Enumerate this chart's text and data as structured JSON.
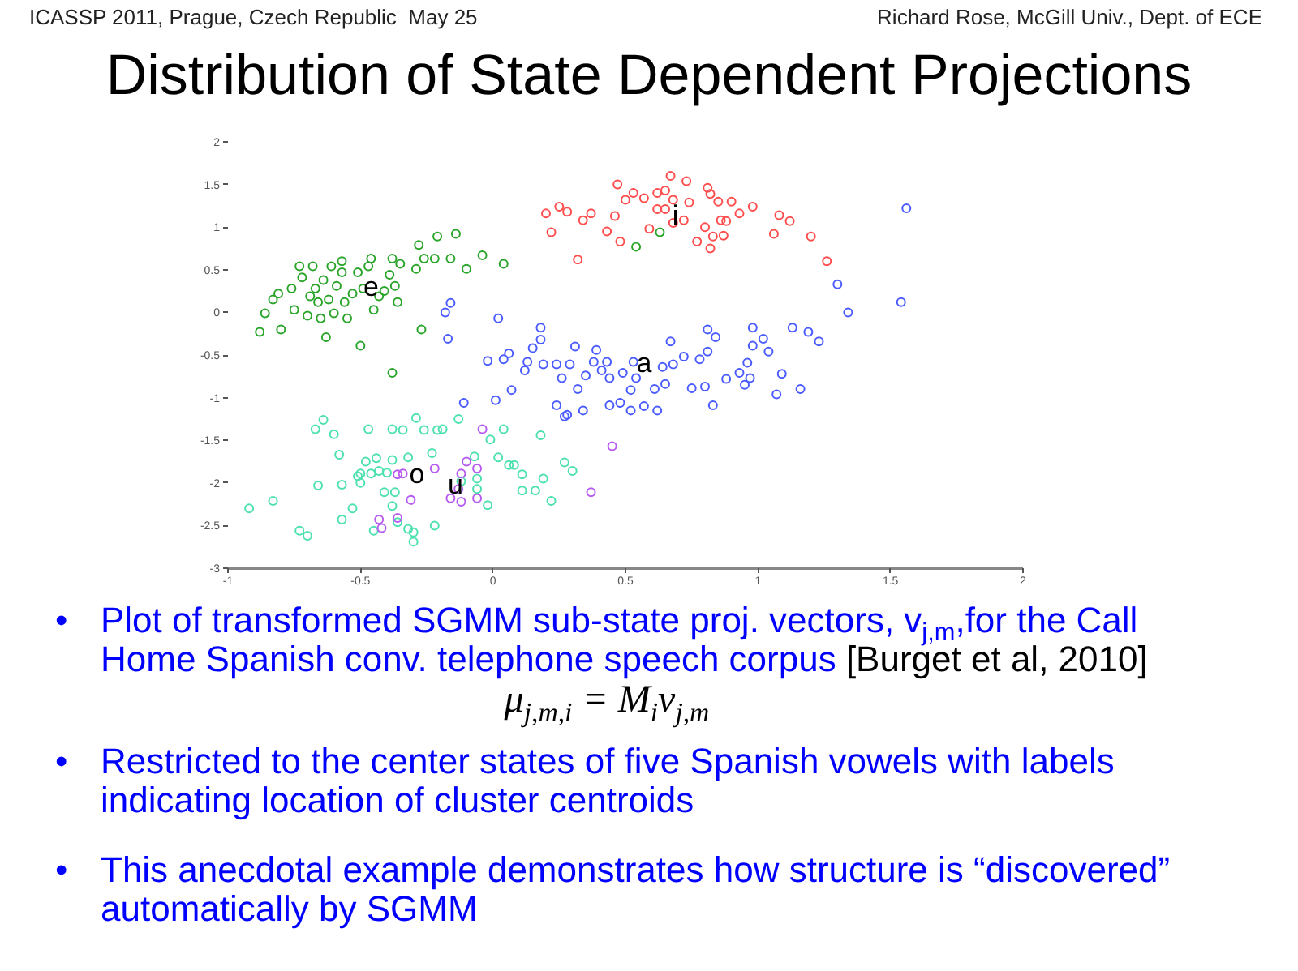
{
  "chart_data": {
    "type": "scatter",
    "title": "Distribution of State Dependent Projections",
    "xlim": [
      -1,
      2
    ],
    "xticks": [
      -1,
      -0.5,
      0,
      0.5,
      1,
      1.5,
      2
    ],
    "ylim": [
      -3,
      2
    ],
    "yticks": [
      -3,
      -2.5,
      -2,
      -1.5,
      -1,
      -0.5,
      0,
      0.5,
      1,
      1.5,
      2
    ],
    "grid": false,
    "marker": "circle",
    "series": [
      {
        "name": "i",
        "color": "#ff4d4d",
        "x": [
          0.2,
          0.22,
          0.25,
          0.28,
          0.32,
          0.34,
          0.37,
          0.43,
          0.46,
          0.47,
          0.48,
          0.5,
          0.53,
          0.57,
          0.59,
          0.62,
          0.62,
          0.65,
          0.65,
          0.67,
          0.68,
          0.68,
          0.72,
          0.73,
          0.74,
          0.77,
          0.8,
          0.81,
          0.82,
          0.82,
          0.83,
          0.85,
          0.86,
          0.87,
          0.88,
          0.9,
          0.93,
          0.98,
          1.06,
          1.08,
          1.12,
          1.2,
          1.26
        ],
        "values": [
          1.16,
          0.94,
          1.24,
          1.18,
          0.62,
          1.08,
          1.16,
          0.95,
          1.13,
          1.5,
          0.83,
          1.32,
          1.4,
          1.34,
          0.98,
          1.4,
          1.21,
          1.43,
          1.21,
          1.6,
          1.32,
          1.05,
          1.08,
          1.54,
          1.29,
          0.83,
          1.0,
          1.46,
          1.39,
          0.75,
          0.89,
          1.3,
          1.08,
          0.9,
          1.07,
          1.3,
          1.16,
          1.24,
          0.92,
          1.14,
          1.07,
          0.89,
          0.6
        ]
      },
      {
        "name": "e",
        "color": "#2aa52a",
        "x": [
          -0.88,
          -0.86,
          -0.83,
          -0.81,
          -0.8,
          -0.76,
          -0.75,
          -0.73,
          -0.72,
          -0.7,
          -0.69,
          -0.68,
          -0.67,
          -0.66,
          -0.65,
          -0.64,
          -0.63,
          -0.62,
          -0.61,
          -0.6,
          -0.59,
          -0.57,
          -0.57,
          -0.56,
          -0.55,
          -0.53,
          -0.51,
          -0.5,
          -0.49,
          -0.47,
          -0.46,
          -0.45,
          -0.43,
          -0.41,
          -0.39,
          -0.38,
          -0.37,
          -0.36,
          -0.35,
          -0.29,
          -0.28,
          -0.27,
          -0.26,
          -0.22,
          -0.21,
          -0.16,
          -0.14,
          -0.1,
          -0.04,
          0.04,
          0.54,
          0.63,
          -0.38
        ],
        "values": [
          -0.23,
          -0.01,
          0.15,
          0.22,
          -0.2,
          0.28,
          0.03,
          0.54,
          0.41,
          -0.04,
          0.19,
          0.54,
          0.28,
          0.12,
          -0.07,
          0.38,
          -0.29,
          0.15,
          0.54,
          -0.01,
          0.31,
          0.6,
          0.47,
          0.12,
          -0.07,
          0.22,
          0.47,
          -0.39,
          0.28,
          0.54,
          0.63,
          0.03,
          0.19,
          0.25,
          0.44,
          0.63,
          0.31,
          0.12,
          0.57,
          0.51,
          0.79,
          -0.2,
          0.63,
          0.63,
          0.89,
          0.63,
          0.92,
          0.51,
          0.67,
          0.57,
          0.77,
          0.94,
          -0.71
        ]
      },
      {
        "name": "a",
        "color": "#4a5cff",
        "x": [
          1.56,
          1.3,
          1.54,
          1.34,
          1.23,
          1.19,
          1.13,
          1.02,
          0.98,
          0.98,
          1.04,
          1.09,
          1.16,
          1.07,
          0.96,
          0.93,
          0.97,
          0.88,
          0.95,
          0.81,
          0.84,
          0.81,
          0.78,
          0.72,
          0.8,
          0.83,
          0.75,
          0.67,
          0.68,
          0.64,
          0.65,
          0.61,
          0.62,
          0.53,
          0.54,
          0.52,
          0.49,
          0.48,
          0.44,
          0.43,
          0.41,
          0.39,
          0.38,
          0.35,
          0.32,
          0.31,
          0.29,
          0.24,
          0.24,
          0.26,
          0.19,
          0.18,
          0.18,
          0.15,
          0.13,
          0.12,
          0.07,
          0.06,
          0.04,
          0.02,
          0.01,
          -0.02,
          0.44,
          0.57,
          0.52,
          0.34,
          0.28,
          -0.16,
          -0.18,
          -0.17,
          -0.11,
          0.27
        ],
        "values": [
          1.22,
          0.33,
          0.12,
          0.0,
          -0.34,
          -0.23,
          -0.18,
          -0.31,
          -0.18,
          -0.39,
          -0.46,
          -0.72,
          -0.9,
          -0.96,
          -0.59,
          -0.71,
          -0.77,
          -0.78,
          -0.85,
          -0.2,
          -0.29,
          -0.46,
          -0.55,
          -0.52,
          -0.87,
          -1.09,
          -0.89,
          -0.34,
          -0.61,
          -0.64,
          -0.84,
          -0.9,
          -1.15,
          -0.58,
          -0.77,
          -0.91,
          -0.71,
          -1.06,
          -0.77,
          -0.58,
          -0.68,
          -0.44,
          -0.58,
          -0.74,
          -0.9,
          -0.4,
          -0.61,
          -0.61,
          -1.09,
          -0.77,
          -0.61,
          -0.32,
          -0.18,
          -0.42,
          -0.58,
          -0.68,
          -0.91,
          -0.48,
          -0.55,
          -0.07,
          -1.03,
          -0.57,
          -1.09,
          -1.1,
          -1.15,
          -1.15,
          -1.2,
          0.11,
          0.0,
          -0.31,
          -1.06,
          -1.22
        ]
      },
      {
        "name": "o",
        "color": "#4de0b0",
        "x": [
          -0.92,
          -0.83,
          -0.73,
          -0.7,
          -0.67,
          -0.64,
          -0.6,
          -0.58,
          -0.66,
          -0.57,
          -0.57,
          -0.53,
          -0.51,
          -0.5,
          -0.5,
          -0.48,
          -0.47,
          -0.46,
          -0.45,
          -0.44,
          -0.43,
          -0.41,
          -0.4,
          -0.38,
          -0.38,
          -0.38,
          -0.37,
          -0.36,
          -0.34,
          -0.32,
          -0.32,
          -0.3,
          -0.3,
          -0.29,
          -0.26,
          -0.23,
          -0.22,
          -0.21,
          -0.19,
          -0.13,
          -0.12,
          -0.07,
          -0.06,
          -0.06,
          -0.02,
          -0.01,
          0.02,
          0.04,
          0.06,
          0.08,
          0.11,
          0.11,
          0.16,
          0.19,
          0.22,
          0.27,
          0.3,
          0.18
        ],
        "values": [
          -2.3,
          -2.21,
          -2.56,
          -2.62,
          -1.37,
          -1.26,
          -1.43,
          -1.67,
          -2.03,
          -2.02,
          -2.43,
          -2.3,
          -1.92,
          -1.89,
          -2.0,
          -1.75,
          -1.37,
          -1.89,
          -2.56,
          -1.71,
          -1.86,
          -2.11,
          -1.88,
          -1.73,
          -1.37,
          -2.27,
          -2.11,
          -2.46,
          -1.38,
          -1.7,
          -2.54,
          -2.69,
          -2.58,
          -1.24,
          -1.38,
          -1.65,
          -2.5,
          -1.38,
          -1.37,
          -1.25,
          -1.98,
          -1.69,
          -1.95,
          -2.07,
          -2.26,
          -1.49,
          -1.7,
          -1.37,
          -1.79,
          -1.79,
          -1.9,
          -2.09,
          -2.09,
          -1.95,
          -2.21,
          -1.76,
          -1.86,
          -1.44
        ]
      },
      {
        "name": "u",
        "color": "#b75cf0",
        "x": [
          -0.36,
          -0.34,
          -0.31,
          -0.36,
          -0.43,
          -0.42,
          -0.22,
          -0.16,
          -0.12,
          -0.1,
          -0.06,
          -0.06,
          -0.04,
          -0.12,
          -0.13,
          0.45,
          0.37
        ],
        "values": [
          -1.9,
          -1.89,
          -2.2,
          -2.41,
          -2.43,
          -2.53,
          -1.83,
          -2.18,
          -1.89,
          -1.75,
          -1.83,
          -2.18,
          -1.37,
          -2.22,
          -2.07,
          -1.57,
          -2.11
        ]
      }
    ],
    "annotations": [
      "ICASSP 2011, Prague, Czech Republic  May 25",
      "Richard Rose, McGill Univ., Dept. of ECE",
      "• Plot of transformed SGMM sub-state proj. vectors, v$_{j,m}$,for the Call Home Spanish conv. telephone speech corpus [Burget et al, 2010]",
      "μ$_{j,m,i}$ = M$_{i}$v$_{j,m}$",
      "• Restricted to the center states of five Spanish vowels with labels indicating location of cluster centroids",
      "• This anecdotal example demonstrates how structure is “discovered” automatically by SGMM"
    ]
  }
}
